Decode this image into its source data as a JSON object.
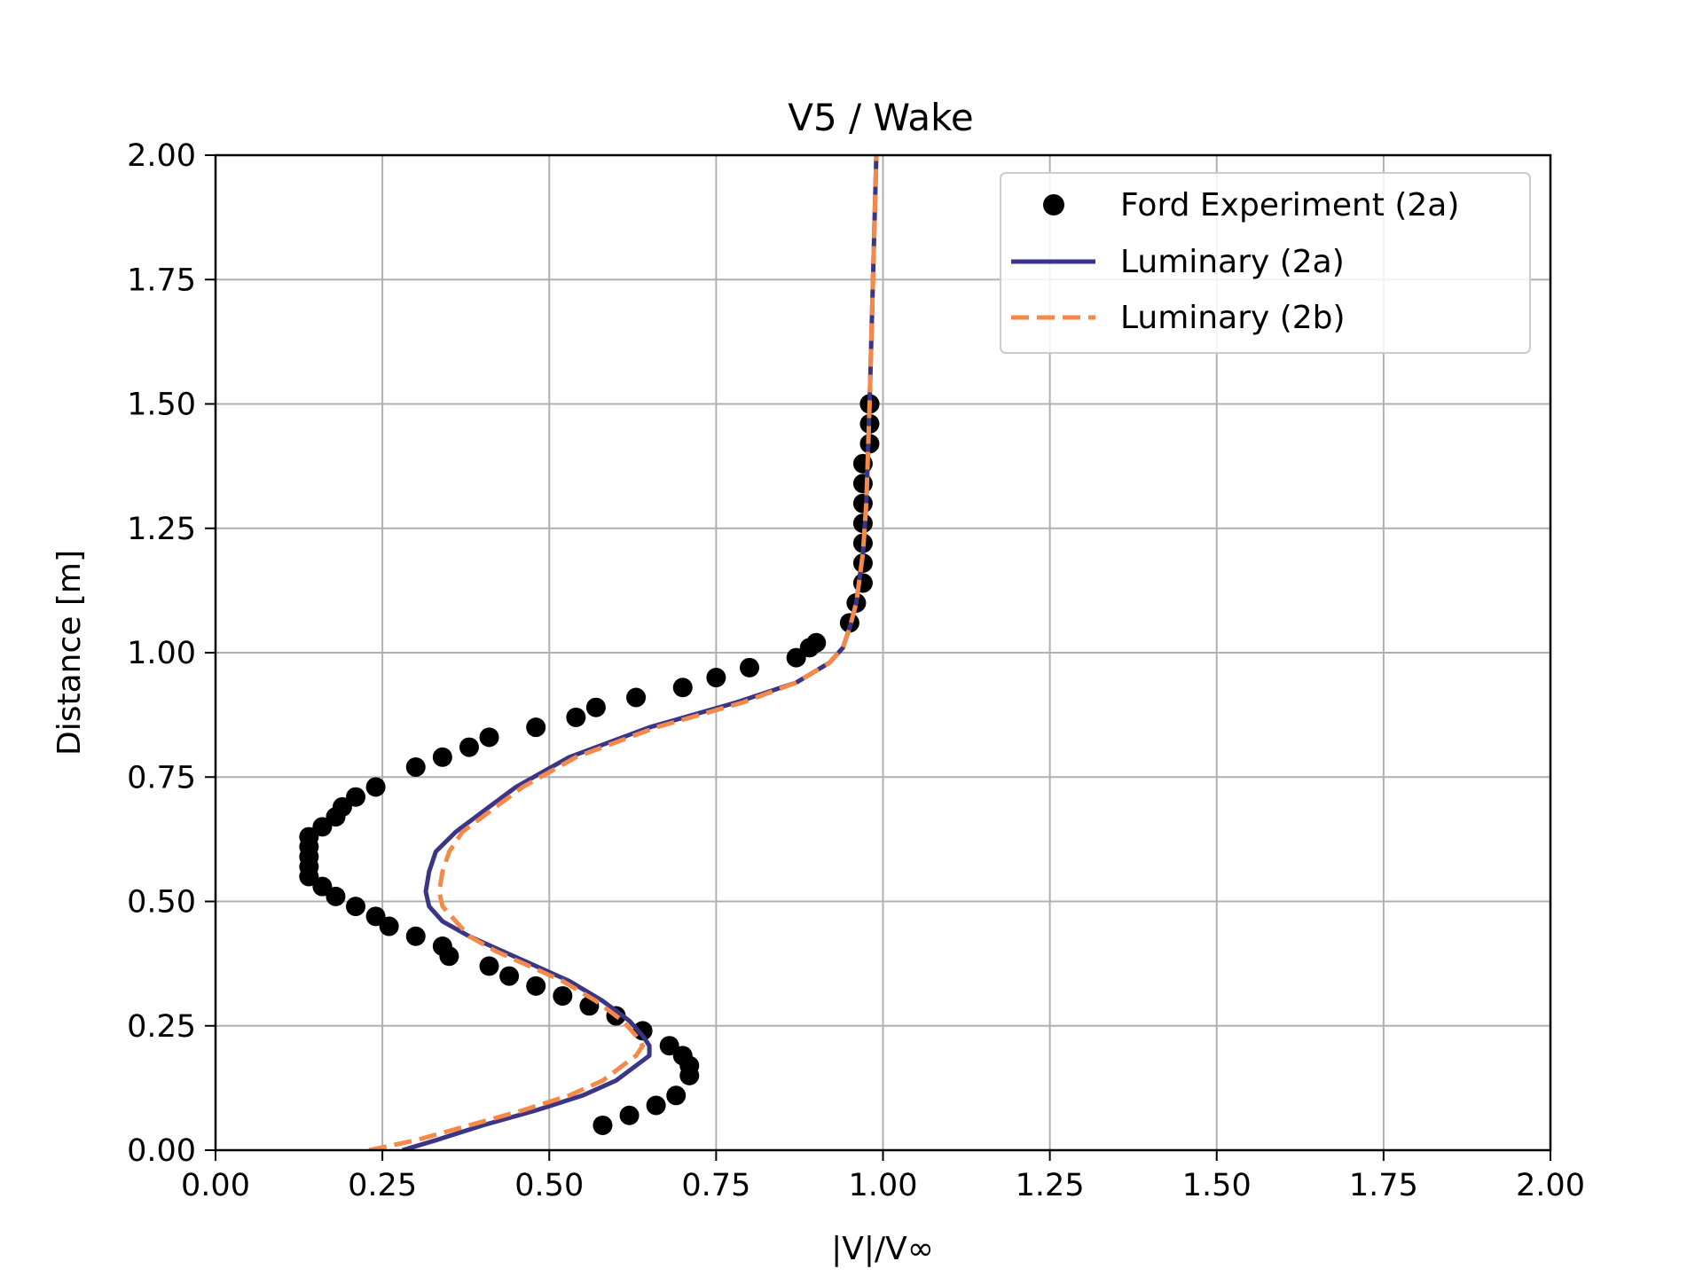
{
  "chart_data": {
    "type": "line",
    "title": "V5 / Wake",
    "xlabel": "|V|/V∞",
    "ylabel": "Distance [m]",
    "xlim": [
      0,
      2
    ],
    "ylim": [
      0,
      2
    ],
    "xticks": [
      "0.00",
      "0.25",
      "0.50",
      "0.75",
      "1.00",
      "1.25",
      "1.50",
      "1.75",
      "2.00"
    ],
    "yticks": [
      "0.00",
      "0.25",
      "0.50",
      "0.75",
      "1.00",
      "1.25",
      "1.50",
      "1.75",
      "2.00"
    ],
    "grid": true,
    "legend_position": "top-right",
    "series": [
      {
        "name": "Ford Experiment (2a)",
        "style": "scatter",
        "color": "#000000",
        "x": [
          0.58,
          0.62,
          0.66,
          0.69,
          0.71,
          0.71,
          0.7,
          0.68,
          0.64,
          0.6,
          0.56,
          0.52,
          0.48,
          0.44,
          0.41,
          0.35,
          0.34,
          0.3,
          0.26,
          0.24,
          0.21,
          0.18,
          0.16,
          0.14,
          0.14,
          0.14,
          0.14,
          0.14,
          0.16,
          0.18,
          0.19,
          0.21,
          0.24,
          0.3,
          0.34,
          0.38,
          0.41,
          0.48,
          0.54,
          0.57,
          0.63,
          0.7,
          0.75,
          0.8,
          0.87,
          0.89,
          0.9,
          0.95,
          0.96,
          0.97,
          0.97,
          0.97,
          0.97,
          0.97,
          0.97,
          0.97,
          0.98,
          0.98,
          0.98,
          0.98
        ],
        "y": [
          0.05,
          0.07,
          0.09,
          0.11,
          0.15,
          0.17,
          0.19,
          0.21,
          0.24,
          0.27,
          0.29,
          0.31,
          0.33,
          0.35,
          0.37,
          0.39,
          0.41,
          0.43,
          0.45,
          0.47,
          0.49,
          0.51,
          0.53,
          0.55,
          0.57,
          0.59,
          0.61,
          0.63,
          0.65,
          0.67,
          0.69,
          0.71,
          0.73,
          0.77,
          0.79,
          0.81,
          0.83,
          0.85,
          0.87,
          0.89,
          0.91,
          0.93,
          0.95,
          0.97,
          0.99,
          1.01,
          1.02,
          1.06,
          1.1,
          1.14,
          1.18,
          1.22,
          1.26,
          1.3,
          1.34,
          1.38,
          1.42,
          1.46,
          1.5,
          1.5
        ]
      },
      {
        "name": "Luminary (2a)",
        "style": "solid",
        "color": "#3b3585",
        "x": [
          0.28,
          0.33,
          0.4,
          0.48,
          0.55,
          0.6,
          0.63,
          0.65,
          0.65,
          0.64,
          0.62,
          0.58,
          0.53,
          0.48,
          0.43,
          0.38,
          0.34,
          0.32,
          0.315,
          0.32,
          0.33,
          0.36,
          0.4,
          0.45,
          0.53,
          0.65,
          0.78,
          0.87,
          0.92,
          0.94,
          0.95,
          0.96,
          0.97,
          0.975,
          0.98,
          0.985,
          0.99
        ],
        "y": [
          0.0,
          0.02,
          0.05,
          0.08,
          0.11,
          0.14,
          0.17,
          0.19,
          0.21,
          0.23,
          0.26,
          0.3,
          0.34,
          0.37,
          0.4,
          0.43,
          0.46,
          0.49,
          0.52,
          0.56,
          0.6,
          0.64,
          0.68,
          0.73,
          0.79,
          0.85,
          0.9,
          0.94,
          0.98,
          1.01,
          1.05,
          1.1,
          1.2,
          1.3,
          1.5,
          1.75,
          2.0
        ]
      },
      {
        "name": "Luminary (2b)",
        "style": "dashed",
        "color": "#f5894a",
        "x": [
          0.23,
          0.3,
          0.38,
          0.46,
          0.53,
          0.58,
          0.61,
          0.63,
          0.64,
          0.63,
          0.61,
          0.57,
          0.52,
          0.47,
          0.42,
          0.38,
          0.36,
          0.34,
          0.335,
          0.34,
          0.35,
          0.37,
          0.41,
          0.46,
          0.54,
          0.66,
          0.79,
          0.87,
          0.92,
          0.94,
          0.95,
          0.96,
          0.97,
          0.975,
          0.98,
          0.985,
          0.99
        ],
        "y": [
          0.0,
          0.02,
          0.05,
          0.08,
          0.11,
          0.14,
          0.17,
          0.19,
          0.21,
          0.23,
          0.26,
          0.3,
          0.34,
          0.37,
          0.4,
          0.43,
          0.46,
          0.49,
          0.52,
          0.56,
          0.6,
          0.64,
          0.68,
          0.73,
          0.79,
          0.85,
          0.9,
          0.94,
          0.98,
          1.01,
          1.05,
          1.1,
          1.2,
          1.3,
          1.5,
          1.75,
          2.0
        ]
      }
    ]
  }
}
